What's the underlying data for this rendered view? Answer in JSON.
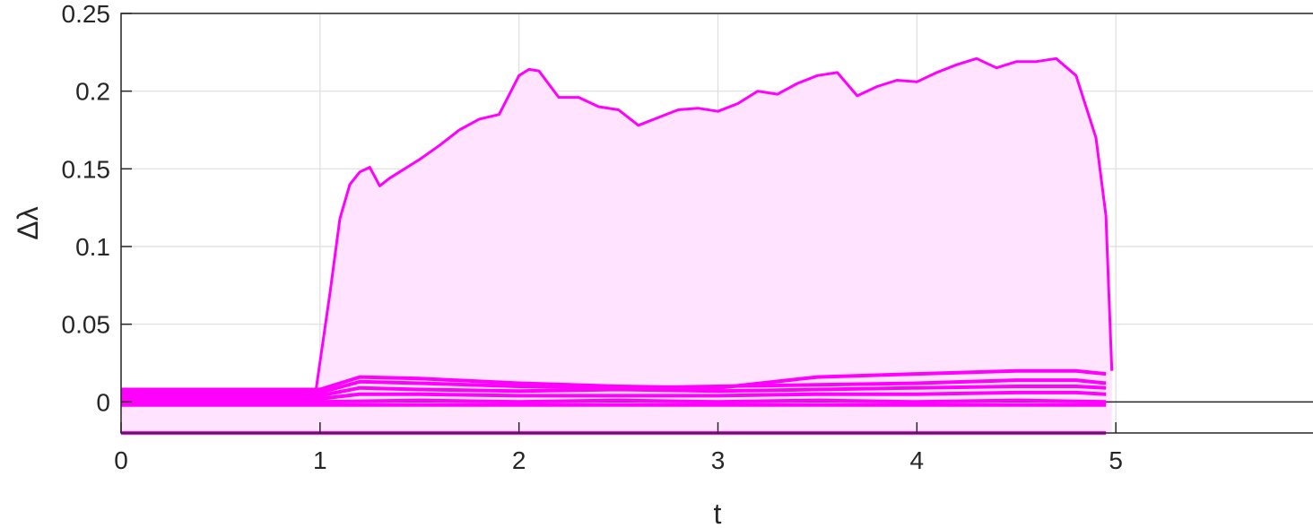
{
  "chart_data": {
    "type": "area",
    "title": "",
    "xlabel": "t",
    "ylabel": "Δλ",
    "xlim": [
      0,
      6
    ],
    "ylim": [
      -0.02,
      0.25
    ],
    "xticks": [
      0,
      1,
      2,
      3,
      4,
      5
    ],
    "yticks": [
      0,
      0.05,
      0.1,
      0.15,
      0.2,
      0.25
    ],
    "ytick_labels": [
      "0",
      "0.05",
      "0.1",
      "0.15",
      "0.2",
      "0.25"
    ],
    "xtick_labels": [
      "0",
      "1",
      "2",
      "3",
      "4",
      "5"
    ],
    "grid": true,
    "legend": "none",
    "color": "#ff00ff",
    "fill_color": "#ffe3ff",
    "baseline_y": 0,
    "series": [
      {
        "x": [
          0,
          0.98,
          1.05,
          1.1,
          1.15,
          1.2,
          1.25,
          1.3,
          1.35,
          1.4,
          1.5,
          1.6,
          1.7,
          1.8,
          1.9,
          2.0,
          2.05,
          2.1,
          2.2,
          2.3,
          2.4,
          2.5,
          2.6,
          2.7,
          2.8,
          2.9,
          3.0,
          3.1,
          3.2,
          3.3,
          3.4,
          3.5,
          3.6,
          3.7,
          3.8,
          3.9,
          4.0,
          4.1,
          4.2,
          4.3,
          4.4,
          4.5,
          4.6,
          4.7,
          4.8,
          4.9,
          4.95,
          4.98
        ],
        "y": [
          0.008,
          0.008,
          0.07,
          0.118,
          0.14,
          0.148,
          0.151,
          0.139,
          0.144,
          0.148,
          0.156,
          0.165,
          0.175,
          0.182,
          0.185,
          0.21,
          0.214,
          0.213,
          0.196,
          0.196,
          0.19,
          0.188,
          0.178,
          0.183,
          0.188,
          0.189,
          0.187,
          0.192,
          0.2,
          0.198,
          0.205,
          0.21,
          0.212,
          0.197,
          0.203,
          0.207,
          0.206,
          0.212,
          0.217,
          0.221,
          0.215,
          0.219,
          0.219,
          0.221,
          0.21,
          0.17,
          0.12,
          0.02
        ]
      },
      {
        "x": [
          0,
          1.0,
          1.2,
          1.5,
          2.0,
          2.5,
          3.0,
          3.5,
          4.0,
          4.5,
          4.8,
          4.95
        ],
        "y": [
          0.008,
          0.008,
          0.016,
          0.015,
          0.012,
          0.01,
          0.009,
          0.016,
          0.018,
          0.02,
          0.02,
          0.018
        ]
      },
      {
        "x": [
          0,
          1.0,
          1.2,
          1.5,
          2.0,
          2.5,
          3.0,
          3.5,
          4.0,
          4.5,
          4.8,
          4.95
        ],
        "y": [
          0.006,
          0.006,
          0.013,
          0.012,
          0.01,
          0.009,
          0.01,
          0.011,
          0.012,
          0.014,
          0.014,
          0.012
        ]
      },
      {
        "x": [
          0,
          1.0,
          1.2,
          1.5,
          2.0,
          2.5,
          3.0,
          3.5,
          4.0,
          4.5,
          4.8,
          4.95
        ],
        "y": [
          0.004,
          0.004,
          0.009,
          0.008,
          0.007,
          0.008,
          0.007,
          0.008,
          0.009,
          0.01,
          0.01,
          0.009
        ]
      },
      {
        "x": [
          0,
          1.0,
          1.2,
          1.5,
          2.0,
          2.5,
          3.0,
          3.5,
          4.0,
          4.5,
          4.8,
          4.95
        ],
        "y": [
          0.002,
          0.002,
          0.005,
          0.005,
          0.004,
          0.004,
          0.004,
          0.005,
          0.005,
          0.006,
          0.006,
          0.005
        ]
      },
      {
        "x": [
          0,
          1.0,
          1.5,
          2.0,
          2.5,
          3.0,
          3.5,
          4.0,
          4.5,
          4.95
        ],
        "y": [
          0.0,
          0.0,
          0.001,
          0.0,
          0.001,
          0.0,
          0.001,
          0.0,
          0.001,
          0.0
        ]
      },
      {
        "x": [
          0,
          1.0,
          1.5,
          2.0,
          2.5,
          3.0,
          3.5,
          4.0,
          4.5,
          4.95
        ],
        "y": [
          -0.002,
          -0.002,
          -0.002,
          -0.002,
          -0.002,
          -0.002,
          -0.002,
          -0.002,
          -0.002,
          -0.002
        ]
      },
      {
        "x": [
          0,
          1.0,
          2.0,
          3.0,
          4.0,
          4.95
        ],
        "y": [
          -0.02,
          -0.02,
          -0.02,
          -0.02,
          -0.02,
          -0.02
        ]
      }
    ]
  }
}
